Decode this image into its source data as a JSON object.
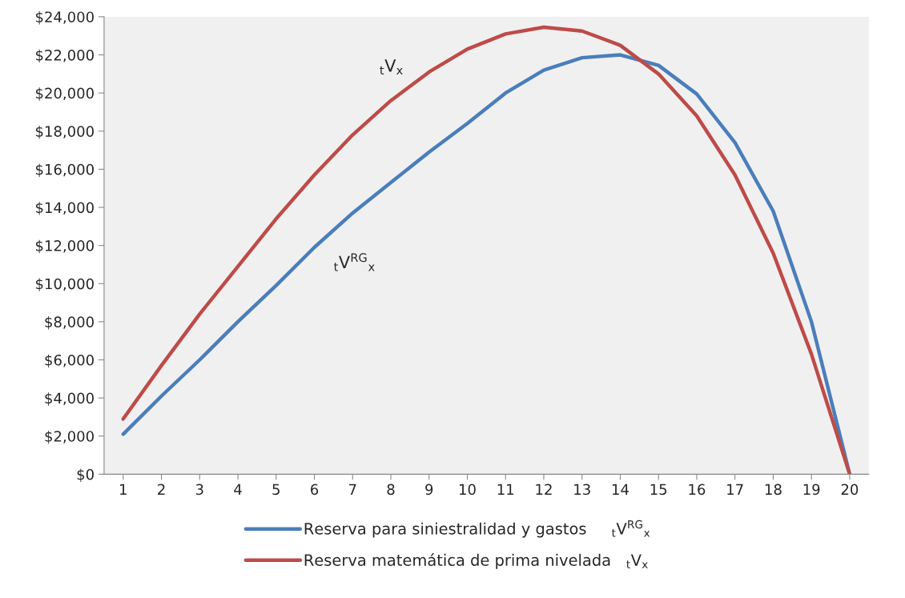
{
  "chart_data": {
    "type": "line",
    "categories": [
      "1",
      "2",
      "3",
      "4",
      "5",
      "6",
      "7",
      "8",
      "9",
      "10",
      "11",
      "12",
      "13",
      "14",
      "15",
      "16",
      "17",
      "18",
      "19",
      "20"
    ],
    "series": [
      {
        "name": "Reserva para siniestralidad y gastos     $_{t}$V$^{RG}$$_{x}$",
        "color": "#4a7ebb",
        "values": [
          2100,
          4100,
          6000,
          8000,
          9900,
          11900,
          13700,
          15300,
          16900,
          18400,
          20000,
          21200,
          21850,
          22000,
          21450,
          19950,
          17400,
          13800,
          8000,
          0
        ]
      },
      {
        "name": "Reserva matemática de prima nivelada   $_{t}$V$_{x}$",
        "color": "#be4b48",
        "values": [
          2900,
          5700,
          8400,
          10900,
          13400,
          15700,
          17800,
          19600,
          21100,
          22300,
          23100,
          23450,
          23250,
          22500,
          21000,
          18800,
          15700,
          11600,
          6300,
          0
        ]
      }
    ],
    "annotations": [
      "$_{t}$V$^{RG}$$_{x}$",
      "$_{t}$V$_{x}$"
    ],
    "ylim": [
      0,
      24000
    ],
    "yticks": [
      {
        "value": 0,
        "label": "$0"
      },
      {
        "value": 2000,
        "label": "$2,000"
      },
      {
        "value": 4000,
        "label": "$4,000"
      },
      {
        "value": 6000,
        "label": "$6,000"
      },
      {
        "value": 8000,
        "label": "$8,000"
      },
      {
        "value": 10000,
        "label": "$10,000"
      },
      {
        "value": 12000,
        "label": "$12,000"
      },
      {
        "value": 14000,
        "label": "$14,000"
      },
      {
        "value": 16000,
        "label": "$16,000"
      },
      {
        "value": 18000,
        "label": "$18,000"
      },
      {
        "value": 20000,
        "label": "$20,000"
      },
      {
        "value": 22000,
        "label": "$22,000"
      },
      {
        "value": 24000,
        "label": "$24,000"
      }
    ],
    "grid": false,
    "legend": "bottom"
  }
}
